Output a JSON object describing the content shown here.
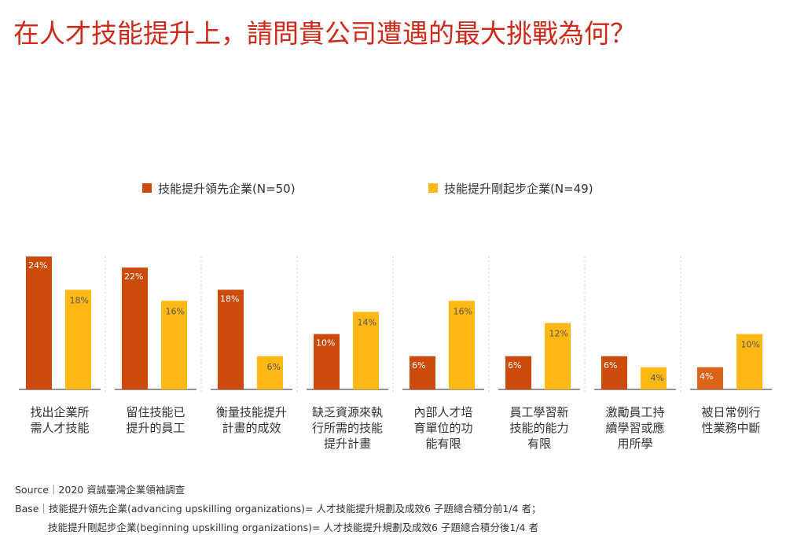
{
  "title": "在人才技能提升上，請問貴公司遭遇的最大挑戰為何？",
  "chart_data": {
    "type": "bar",
    "categories": [
      [
        "找出企業所",
        "需人才技能"
      ],
      [
        "留住技能已",
        "提升的員工"
      ],
      [
        "衡量技能提升",
        "計畫的成效"
      ],
      [
        "缺乏資源來執",
        "行所需的技能",
        "提升計畫"
      ],
      [
        "內部人才培",
        "育單位的功",
        "能有限"
      ],
      [
        "員工學習新",
        "技能的能力",
        "有限"
      ],
      [
        "激勵員工持",
        "續學習或應",
        "用所學"
      ],
      [
        "被日常例行",
        "性業務中斷"
      ]
    ],
    "series": [
      {
        "name": "技能提升領先企業(N=50)",
        "values": [
          24,
          22,
          18,
          10,
          6,
          6,
          6,
          4
        ],
        "labels": [
          "24%",
          "22%",
          "18%",
          "10%",
          "6%",
          "6%",
          "6%",
          "4%"
        ]
      },
      {
        "name": "技能提升剛起步企業(N=49)",
        "values": [
          18,
          16,
          6,
          14,
          16,
          12,
          4,
          10
        ],
        "labels": [
          "18%",
          "16%",
          "6%",
          "14%",
          "16%",
          "12%",
          "4%",
          "10%"
        ]
      }
    ],
    "ylim": [
      0,
      24
    ],
    "grid": false,
    "legend_position": "top"
  },
  "colors": {
    "title": "#cc2a1a",
    "series1": "#cc4a0a",
    "series1_last": "#d9641a",
    "series2": "#fdb813",
    "separator": "#cccccc",
    "baseline": "#555555"
  },
  "footer": {
    "source": "Source｜2020 資誠臺灣企業領袖調查",
    "base1": "Base｜技能提升領先企業(advancing upskilling organizations)= 人才技能提升規劃及成效6 子題總合積分前1/4 者；",
    "base2": "技能提升剛起步企業(beginning upskilling organizations)= 人才技能提升規劃及成效6 子題總合積分後1/4 者"
  }
}
